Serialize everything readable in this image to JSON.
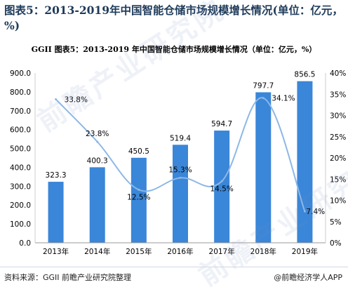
{
  "page": {
    "title": "图表5：2013-2019年中国智能仓储市场规模增长情况(单位：亿元，%)",
    "chart_title": "GGII  图表5：2013-2019 年中国智能仓储市场规模增长情况（单位：亿元，%）",
    "source": "资料来源：GGII  前瞻产业研究院整理",
    "brand": "@前瞻经济学人APP",
    "watermark": "前瞻产业研究院"
  },
  "colors": {
    "bar": "#3a86d8",
    "line": "#8db8e6",
    "axis": "#999999",
    "title": "#1f3b5a"
  },
  "chart_data": {
    "type": "bar",
    "categories": [
      "2013年",
      "2014年",
      "2015年",
      "2016年",
      "2017年",
      "2018年",
      "2019年"
    ],
    "series": [
      {
        "values": [
          323.3,
          400.3,
          450.5,
          519.4,
          594.7,
          797.7,
          856.5
        ]
      },
      {
        "type": "line",
        "axis": "right",
        "values": [
          33.8,
          23.8,
          12.5,
          15.3,
          14.5,
          34.1,
          7.4
        ]
      }
    ],
    "bar_labels": [
      "323.3",
      "400.3",
      "450.5",
      "519.4",
      "594.7",
      "797.7",
      "856.5"
    ],
    "line_labels": [
      "33.8%",
      "23.8%",
      "12.5%",
      "15.3%",
      "14.5%",
      "34.1%",
      "7.4%"
    ],
    "ylim_left": [
      0,
      900
    ],
    "ylim_right": [
      0,
      40
    ],
    "left_ticks": [
      "0.0",
      "100.0",
      "200.0",
      "300.0",
      "400.0",
      "500.0",
      "600.0",
      "700.0",
      "800.0",
      "900.0"
    ],
    "right_ticks": [
      "0%",
      "5%",
      "10%",
      "15%",
      "20%",
      "25%",
      "30%",
      "35%",
      "40%"
    ],
    "grid": false
  }
}
